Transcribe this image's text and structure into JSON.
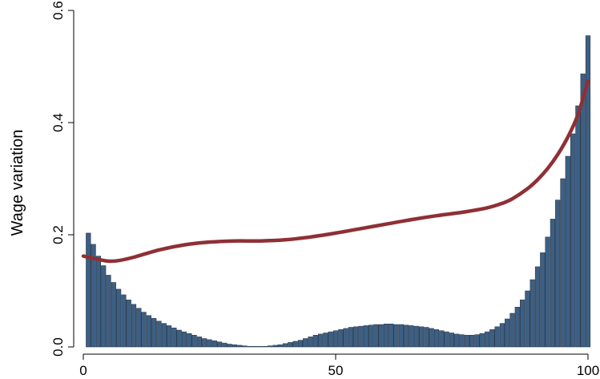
{
  "chart_data": {
    "type": "bar",
    "title": "",
    "xlabel": "",
    "ylabel": "Wage variation",
    "xlim": [
      0,
      100
    ],
    "ylim": [
      0,
      0.6
    ],
    "x_ticks": [
      0,
      50,
      100
    ],
    "x_tick_labels": [
      "0",
      "50",
      "100"
    ],
    "y_ticks": [
      0,
      0.2,
      0.4,
      0.6
    ],
    "y_tick_labels": [
      "0.0",
      "0.2",
      "0.4",
      "0.6"
    ],
    "grid": false,
    "legend": "none",
    "series": [
      {
        "kind": "bar",
        "color": "#3e5f82",
        "x": [
          1,
          2,
          3,
          4,
          5,
          6,
          7,
          8,
          9,
          10,
          11,
          12,
          13,
          14,
          15,
          16,
          17,
          18,
          19,
          20,
          21,
          22,
          23,
          24,
          25,
          26,
          27,
          28,
          29,
          30,
          31,
          32,
          33,
          34,
          35,
          36,
          37,
          38,
          39,
          40,
          41,
          42,
          43,
          44,
          45,
          46,
          47,
          48,
          49,
          50,
          51,
          52,
          53,
          54,
          55,
          56,
          57,
          58,
          59,
          60,
          61,
          62,
          63,
          64,
          65,
          66,
          67,
          68,
          69,
          70,
          71,
          72,
          73,
          74,
          75,
          76,
          77,
          78,
          79,
          80,
          81,
          82,
          83,
          84,
          85,
          86,
          87,
          88,
          89,
          90,
          91,
          92,
          93,
          94,
          95,
          96,
          97,
          98,
          99,
          100
        ],
        "values": [
          0.203,
          0.183,
          0.162,
          0.145,
          0.128,
          0.115,
          0.103,
          0.093,
          0.084,
          0.076,
          0.069,
          0.062,
          0.056,
          0.051,
          0.046,
          0.042,
          0.038,
          0.034,
          0.03,
          0.027,
          0.024,
          0.021,
          0.018,
          0.015,
          0.013,
          0.011,
          0.009,
          0.007,
          0.005,
          0.004,
          0.003,
          0.002,
          0.001,
          0.001,
          0.001,
          0.001,
          0.002,
          0.003,
          0.004,
          0.006,
          0.008,
          0.01,
          0.012,
          0.015,
          0.018,
          0.021,
          0.023,
          0.025,
          0.027,
          0.029,
          0.031,
          0.033,
          0.035,
          0.036,
          0.037,
          0.038,
          0.039,
          0.04,
          0.04,
          0.041,
          0.041,
          0.04,
          0.04,
          0.039,
          0.038,
          0.037,
          0.036,
          0.035,
          0.033,
          0.031,
          0.029,
          0.027,
          0.025,
          0.023,
          0.022,
          0.021,
          0.021,
          0.022,
          0.024,
          0.027,
          0.031,
          0.036,
          0.042,
          0.05,
          0.06,
          0.071,
          0.084,
          0.1,
          0.12,
          0.143,
          0.168,
          0.196,
          0.228,
          0.262,
          0.3,
          0.34,
          0.38,
          0.43,
          0.487,
          0.555
        ]
      },
      {
        "kind": "line",
        "color": "#8e3035",
        "x": [
          0,
          3,
          5,
          7,
          10,
          15,
          20,
          25,
          30,
          35,
          40,
          45,
          50,
          55,
          60,
          65,
          70,
          75,
          80,
          83,
          85,
          88,
          90,
          92,
          94,
          96,
          98,
          100
        ],
        "values": [
          0.162,
          0.156,
          0.153,
          0.154,
          0.16,
          0.173,
          0.182,
          0.187,
          0.189,
          0.189,
          0.191,
          0.196,
          0.203,
          0.211,
          0.219,
          0.227,
          0.234,
          0.24,
          0.248,
          0.256,
          0.264,
          0.282,
          0.298,
          0.318,
          0.343,
          0.374,
          0.414,
          0.474
        ]
      }
    ]
  }
}
